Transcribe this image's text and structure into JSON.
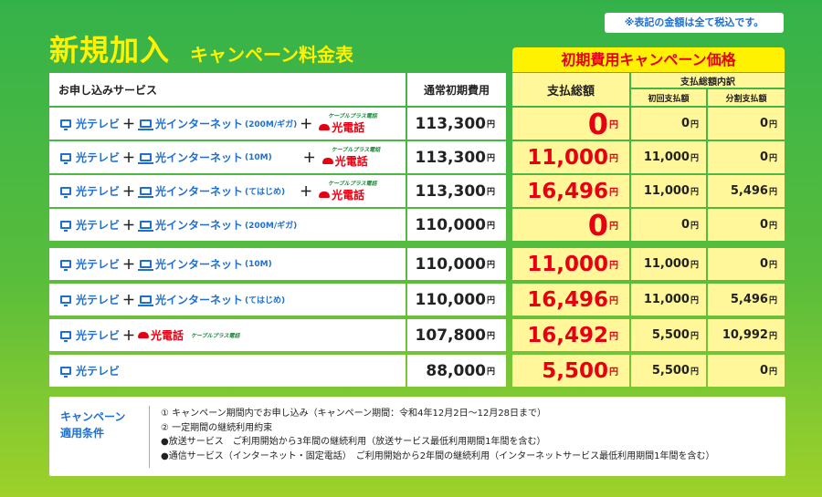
{
  "note": "※表記の金額は全て税込です。",
  "title": {
    "main": "新規加入",
    "sub": "キャンペーン料金表"
  },
  "campaign_header": "初期費用キャンペーン価格",
  "headers": {
    "service": "お申し込みサービス",
    "normal": "通常初期費用",
    "total": "支払総額",
    "breakdown": "支払総額内訳",
    "first": "初回支払額",
    "split": "分割支払額"
  },
  "yen": "円",
  "tv": "光テレビ",
  "plus": "＋",
  "net": "光インターネット",
  "phone": "光電話",
  "cable_label": "ケーブルプラス電話",
  "rows": [
    {
      "speed": "(200M/ギガ)",
      "normal": "113,300",
      "total": "0",
      "first": "0",
      "split": "0"
    },
    {
      "speed": "(10M)",
      "normal": "113,300",
      "total": "11,000",
      "first": "11,000",
      "split": "0"
    },
    {
      "speed": "(てはじめ)",
      "normal": "113,300",
      "total": "16,496",
      "first": "11,000",
      "split": "5,496"
    },
    {
      "speed": "(200M/ギガ)",
      "normal": "110,000",
      "total": "0",
      "first": "0",
      "split": "0"
    },
    {
      "speed": "(10M)",
      "normal": "110,000",
      "total": "11,000",
      "first": "11,000",
      "split": "0"
    },
    {
      "speed": "(てはじめ)",
      "normal": "110,000",
      "total": "16,496",
      "first": "11,000",
      "split": "5,496"
    },
    {
      "speed": "",
      "normal": "107,800",
      "total": "16,492",
      "first": "5,500",
      "split": "10,992"
    },
    {
      "speed": "",
      "normal": "88,000",
      "total": "5,500",
      "first": "5,500",
      "split": "0"
    }
  ],
  "conditions": {
    "label_line1": "キャンペーン",
    "label_line2": "適用条件",
    "lines": [
      "① キャンペーン期間内でお申し込み（キャンペーン期間：令和4年12月2日～12月28日まで）",
      "② 一定期間の継続利用約束",
      "●放送サービス　ご利用開始から3年間の継続利用（放送サービス最低利用期間1年間を含む）",
      "●通信サービス（インターネット・固定電話）　ご利用開始から2年間の継続利用（インターネットサービス最低利用期間1年間を含む）"
    ]
  }
}
